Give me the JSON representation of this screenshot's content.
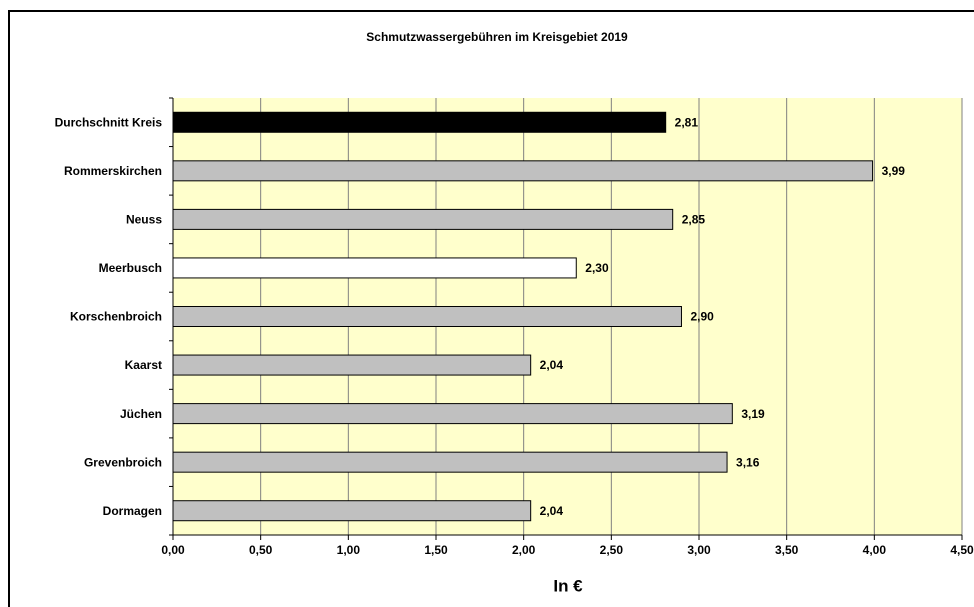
{
  "chart_data": {
    "type": "bar",
    "orientation": "horizontal",
    "title": "Schmutzwassergebühren im Kreisgebiet 2019",
    "xlabel": "In €",
    "categories": [
      "Durchschnitt Kreis",
      "Rommerskirchen",
      "Neuss",
      "Meerbusch",
      "Korschenbroich",
      "Kaarst",
      "Jüchen",
      "Grevenbroich",
      "Dormagen"
    ],
    "values": [
      2.81,
      3.99,
      2.85,
      2.3,
      2.9,
      2.04,
      3.19,
      3.16,
      2.04
    ],
    "value_labels": [
      "2,81",
      "3,99",
      "2,85",
      "2,30",
      "2,90",
      "2,04",
      "3,19",
      "3,16",
      "2,04"
    ],
    "colors": [
      "#000000",
      "#c0c0c0",
      "#c0c0c0",
      "#ffffff",
      "#c0c0c0",
      "#c0c0c0",
      "#c0c0c0",
      "#c0c0c0",
      "#c0c0c0"
    ],
    "xlim": [
      0,
      4.5
    ],
    "xticks": [
      {
        "value": 0,
        "label": "0,00"
      },
      {
        "value": 0.5,
        "label": "0,50"
      },
      {
        "value": 1,
        "label": "1,00"
      },
      {
        "value": 1.5,
        "label": "1,50"
      },
      {
        "value": 2,
        "label": "2,00"
      },
      {
        "value": 2.5,
        "label": "2,50"
      },
      {
        "value": 3,
        "label": "3,00"
      },
      {
        "value": 3.5,
        "label": "3,50"
      },
      {
        "value": 4,
        "label": "4,00"
      },
      {
        "value": 4.5,
        "label": "4,50"
      }
    ],
    "grid": true,
    "plot_background": "#ffffcc"
  }
}
